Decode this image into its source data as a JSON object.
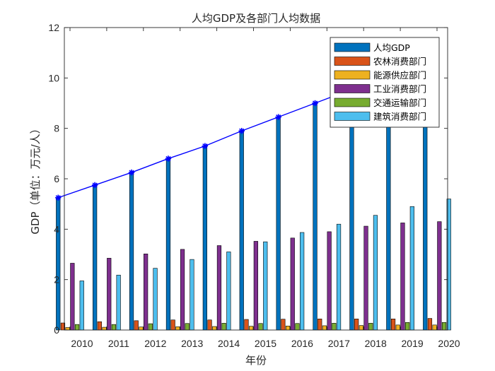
{
  "chart_data": {
    "type": "bar",
    "title": "人均GDP及各部门人均数据",
    "xlabel": "年份",
    "ylabel": "GDP（单位：万元/人）",
    "categories": [
      "2010",
      "2011",
      "2012",
      "2013",
      "2014",
      "2015",
      "2016",
      "2017",
      "2018",
      "2019",
      "2020"
    ],
    "ylim": [
      0,
      12
    ],
    "yticks": [
      0,
      2,
      4,
      6,
      8,
      10,
      12
    ],
    "legend_position": "top-right",
    "grid": false,
    "series": [
      {
        "name": "人均GDP",
        "color": "#0072BD",
        "values": [
          5.25,
          5.75,
          6.25,
          6.8,
          7.3,
          7.9,
          8.45,
          9.0,
          9.55,
          10.1,
          10.6
        ]
      },
      {
        "name": "农林消费部门",
        "color": "#D95319",
        "values": [
          0.28,
          0.33,
          0.37,
          0.4,
          0.4,
          0.42,
          0.43,
          0.44,
          0.44,
          0.44,
          0.46
        ]
      },
      {
        "name": "能源供应部门",
        "color": "#EDB120",
        "values": [
          0.1,
          0.11,
          0.12,
          0.13,
          0.14,
          0.15,
          0.16,
          0.17,
          0.18,
          0.2,
          0.2
        ]
      },
      {
        "name": "工业消费部门",
        "color": "#7E2F8E",
        "values": [
          2.65,
          2.85,
          3.02,
          3.2,
          3.35,
          3.52,
          3.65,
          3.9,
          4.12,
          4.25,
          4.3
        ]
      },
      {
        "name": "交通运输部门",
        "color": "#77AC30",
        "values": [
          0.22,
          0.22,
          0.25,
          0.26,
          0.27,
          0.26,
          0.26,
          0.27,
          0.27,
          0.3,
          0.3
        ]
      },
      {
        "name": "建筑消费部门",
        "color": "#4DBEEE",
        "values": [
          1.95,
          2.18,
          2.45,
          2.8,
          3.1,
          3.5,
          3.87,
          4.2,
          4.55,
          4.9,
          5.2
        ]
      }
    ],
    "line_series": {
      "of": "人均GDP",
      "color": "#0000FF",
      "marker": "asterisk",
      "values": [
        5.25,
        5.75,
        6.25,
        6.8,
        7.3,
        7.9,
        8.45,
        9.0,
        9.55,
        10.1,
        10.6
      ]
    }
  }
}
